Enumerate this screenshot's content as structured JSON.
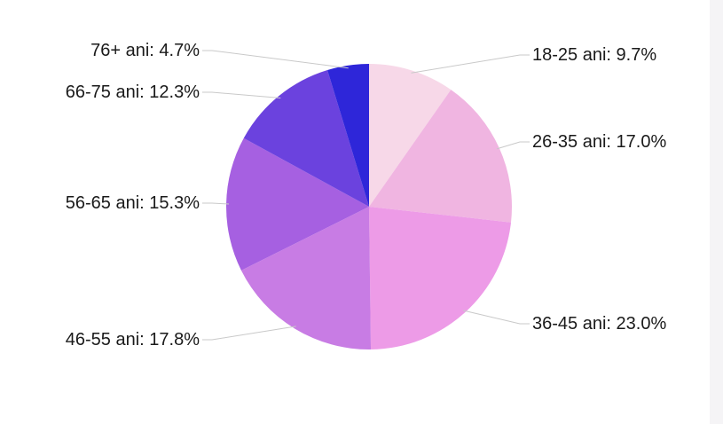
{
  "page": {
    "background": "#ffffff",
    "text_color": "#1a1a1a",
    "leader_line_color": "#c9c9c9"
  },
  "scrollbar": {
    "track_color": "#f5f4f6"
  },
  "chart_data": {
    "type": "pie",
    "title": "",
    "legend_position": "none",
    "label_style": "outside-callout",
    "direction": "clockwise",
    "start_angle_deg": 0,
    "unit": "%",
    "categories": [
      "18-25 ani",
      "26-35 ani",
      "36-45 ani",
      "46-55 ani",
      "56-65 ani",
      "66-75 ani",
      "76+ ani"
    ],
    "values": [
      9.7,
      17.0,
      23.0,
      17.8,
      15.3,
      12.3,
      4.7
    ],
    "slices": [
      {
        "category": "18-25 ani",
        "value": 9.7,
        "label_text": "18-25 ani: 9.7%",
        "color": "#f7d8e8"
      },
      {
        "category": "26-35 ani",
        "value": 17.0,
        "label_text": "26-35 ani: 17.0%",
        "color": "#f0b5e1"
      },
      {
        "category": "36-45 ani",
        "value": 23.0,
        "label_text": "36-45 ani: 23.0%",
        "color": "#ed9be7"
      },
      {
        "category": "46-55 ani",
        "value": 17.8,
        "label_text": "46-55 ani: 17.8%",
        "color": "#c87ce4"
      },
      {
        "category": "56-65 ani",
        "value": 15.3,
        "label_text": "56-65 ani: 15.3%",
        "color": "#a660e1"
      },
      {
        "category": "66-75 ani",
        "value": 12.3,
        "label_text": "66-75 ani: 12.3%",
        "color": "#6b42de"
      },
      {
        "category": "76+ ani",
        "value": 4.7,
        "label_text": "76+ ani: 4.7%",
        "color": "#2e26d9"
      }
    ]
  }
}
